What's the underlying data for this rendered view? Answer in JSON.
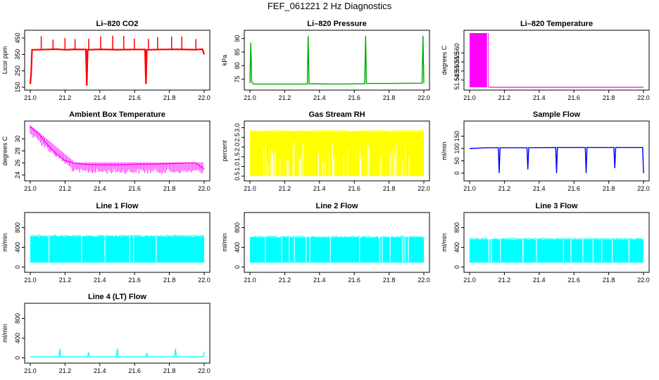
{
  "figure_title": "FEF_061221  2 Hz Diagnostics",
  "chart_data": [
    {
      "id": "co2",
      "type": "line",
      "title": "Li–820 CO2",
      "ylabel": "Licor ppm",
      "color": "#ff0000",
      "xlim": [
        21.0,
        22.0
      ],
      "ylim": [
        150,
        480
      ],
      "xticks": [
        "21.0",
        "21.2",
        "21.4",
        "21.6",
        "21.8",
        "22.0"
      ],
      "yticks": [
        "150",
        "250",
        "350",
        "450"
      ],
      "series": [
        {
          "x": [
            21.0,
            21.005,
            21.01,
            21.1,
            21.15,
            21.2,
            21.25,
            21.32,
            21.325,
            21.33,
            21.4,
            21.5,
            21.6,
            21.66,
            21.665,
            21.67,
            21.75,
            21.85,
            21.95,
            21.99,
            22.0
          ],
          "y": [
            170,
            230,
            378,
            380,
            382,
            378,
            381,
            380,
            160,
            378,
            381,
            379,
            380,
            380,
            170,
            378,
            380,
            381,
            379,
            382,
            350
          ]
        }
      ]
    },
    {
      "id": "pressure",
      "type": "line",
      "title": "Li–820 Pressure",
      "ylabel": "kPa",
      "color": "#00aa00",
      "xlim": [
        21.0,
        22.0
      ],
      "ylim": [
        72,
        92
      ],
      "xticks": [
        "21.0",
        "21.2",
        "21.4",
        "21.6",
        "21.8",
        "22.0"
      ],
      "yticks": [
        "75",
        "80",
        "85",
        "90"
      ],
      "series": [
        {
          "x": [
            21.0,
            21.005,
            21.01,
            21.02,
            21.1,
            21.2,
            21.33,
            21.335,
            21.34,
            21.5,
            21.66,
            21.665,
            21.67,
            21.8,
            21.99,
            21.995,
            22.0
          ],
          "y": [
            73.5,
            88.5,
            74,
            73.2,
            73.2,
            73.2,
            73.2,
            91,
            73.3,
            73.2,
            73.3,
            91,
            73.4,
            73.4,
            73.5,
            91,
            73.5
          ]
        }
      ]
    },
    {
      "id": "licor-temp",
      "type": "area",
      "title": "Li–820 Temperature",
      "ylabel": "degrees C",
      "color": "#ff00ff",
      "xlim": [
        21.0,
        22.0
      ],
      "ylim": [
        51.541,
        51.571
      ],
      "xticks": [
        "21.0",
        "21.2",
        "21.4",
        "21.6",
        "21.8",
        "22.0"
      ],
      "yticks": [
        "51.545",
        "51.550",
        "51.555",
        "51.560"
      ],
      "series": [
        {
          "x": [
            21.0,
            21.1,
            21.11,
            22.0
          ],
          "y": [
            51.571,
            51.571,
            51.541,
            51.541
          ]
        }
      ]
    },
    {
      "id": "box-temp",
      "type": "line",
      "title": "Ambient Box Temperature",
      "ylabel": "degrees C",
      "color": "#ff00ff",
      "xlim": [
        21.0,
        22.0
      ],
      "ylim": [
        23.5,
        32.5
      ],
      "xticks": [
        "21.0",
        "21.2",
        "21.4",
        "21.6",
        "21.8",
        "22.0"
      ],
      "yticks": [
        "24",
        "26",
        "28",
        "30"
      ],
      "series": [
        {
          "x": [
            21.0,
            21.05,
            21.1,
            21.15,
            21.2,
            21.25,
            21.3,
            21.4,
            21.5,
            21.6,
            21.7,
            21.8,
            21.9,
            21.95,
            22.0
          ],
          "y": [
            32,
            30.8,
            29,
            27.5,
            26.4,
            26,
            25.8,
            25.7,
            25.7,
            25.8,
            25.8,
            25.9,
            26,
            26,
            25
          ]
        }
      ]
    },
    {
      "id": "rh",
      "type": "area",
      "title": "Gas Stream RH",
      "ylabel": "percent",
      "color": "#ffff00",
      "xlim": [
        21.0,
        22.0
      ],
      "ylim": [
        0.4,
        3.2
      ],
      "xticks": [
        "21.0",
        "21.2",
        "21.4",
        "21.6",
        "21.8",
        "22.0"
      ],
      "yticks": [
        "0.5",
        "1.0",
        "1.5",
        "2.0",
        "2.5",
        "3.0"
      ],
      "series": [
        {
          "name": "upper",
          "x": [
            21.0,
            22.0
          ],
          "y": [
            2.8,
            2.8
          ]
        },
        {
          "name": "lower",
          "x": [
            21.0,
            22.0
          ],
          "y": [
            0.5,
            0.5
          ]
        }
      ]
    },
    {
      "id": "sample-flow",
      "type": "line",
      "title": "Sample Flow",
      "ylabel": "ml/min",
      "color": "#0000ff",
      "xlim": [
        21.0,
        22.0
      ],
      "ylim": [
        -20,
        200
      ],
      "xticks": [
        "21.0",
        "21.2",
        "21.4",
        "21.6",
        "21.8",
        "22.0"
      ],
      "yticks": [
        "0",
        "50",
        "100",
        "150"
      ],
      "series": [
        {
          "x": [
            21.0,
            21.1,
            21.165,
            21.17,
            21.175,
            21.33,
            21.335,
            21.34,
            21.495,
            21.5,
            21.505,
            21.665,
            21.67,
            21.675,
            21.83,
            21.835,
            21.84,
            21.995,
            22.0
          ],
          "y": [
            100,
            103,
            103,
            0,
            103,
            103,
            15,
            103,
            104,
            0,
            104,
            104,
            0,
            104,
            104,
            20,
            104,
            104,
            0
          ]
        }
      ]
    },
    {
      "id": "line1",
      "type": "area",
      "title": "Line 1 Flow",
      "ylabel": "ml/min",
      "color": "#00ffff",
      "xlim": [
        21.0,
        22.0
      ],
      "ylim": [
        -50,
        1050
      ],
      "xticks": [
        "21.0",
        "21.2",
        "21.4",
        "21.6",
        "21.8",
        "22.0"
      ],
      "yticks": [
        "0",
        "400",
        "800"
      ],
      "series": [
        {
          "name": "upper",
          "x": [
            21.0,
            22.0
          ],
          "y": [
            620,
            620
          ]
        },
        {
          "name": "lower",
          "x": [
            21.0,
            22.0
          ],
          "y": [
            90,
            90
          ]
        }
      ]
    },
    {
      "id": "line2",
      "type": "area",
      "title": "Line 2 Flow",
      "ylabel": "ml/min",
      "color": "#00ffff",
      "xlim": [
        21.0,
        22.0
      ],
      "ylim": [
        -50,
        1050
      ],
      "xticks": [
        "21.0",
        "21.2",
        "21.4",
        "21.6",
        "21.8",
        "22.0"
      ],
      "yticks": [
        "0",
        "400",
        "800"
      ],
      "series": [
        {
          "name": "upper",
          "x": [
            21.0,
            22.0
          ],
          "y": [
            600,
            600
          ]
        },
        {
          "name": "lower",
          "x": [
            21.0,
            22.0
          ],
          "y": [
            90,
            90
          ]
        }
      ]
    },
    {
      "id": "line3",
      "type": "area",
      "title": "Line 3 Flow",
      "ylabel": "ml/min",
      "color": "#00ffff",
      "xlim": [
        21.0,
        22.0
      ],
      "ylim": [
        -50,
        1050
      ],
      "xticks": [
        "21.0",
        "21.2",
        "21.4",
        "21.6",
        "21.8",
        "22.0"
      ],
      "yticks": [
        "0",
        "400",
        "800"
      ],
      "series": [
        {
          "name": "upper",
          "x": [
            21.0,
            22.0
          ],
          "y": [
            560,
            560
          ]
        },
        {
          "name": "lower",
          "x": [
            21.0,
            22.0
          ],
          "y": [
            90,
            90
          ]
        }
      ]
    },
    {
      "id": "line4",
      "type": "line",
      "title": "Line 4 (LT) Flow",
      "ylabel": "ml/min",
      "color": "#00ffff",
      "xlim": [
        21.0,
        22.0
      ],
      "ylim": [
        -50,
        1050
      ],
      "xticks": [
        "21.0",
        "21.2",
        "21.4",
        "21.6",
        "21.8",
        "22.0"
      ],
      "yticks": [
        "0",
        "400",
        "800"
      ],
      "series": [
        {
          "x": [
            21.0,
            21.165,
            21.17,
            21.175,
            21.33,
            21.335,
            21.34,
            21.495,
            21.5,
            21.505,
            21.665,
            21.67,
            21.675,
            21.83,
            21.835,
            21.84,
            21.995,
            22.0
          ],
          "y": [
            20,
            20,
            180,
            20,
            20,
            110,
            20,
            20,
            190,
            20,
            20,
            100,
            20,
            20,
            180,
            20,
            20,
            120
          ]
        }
      ]
    }
  ]
}
